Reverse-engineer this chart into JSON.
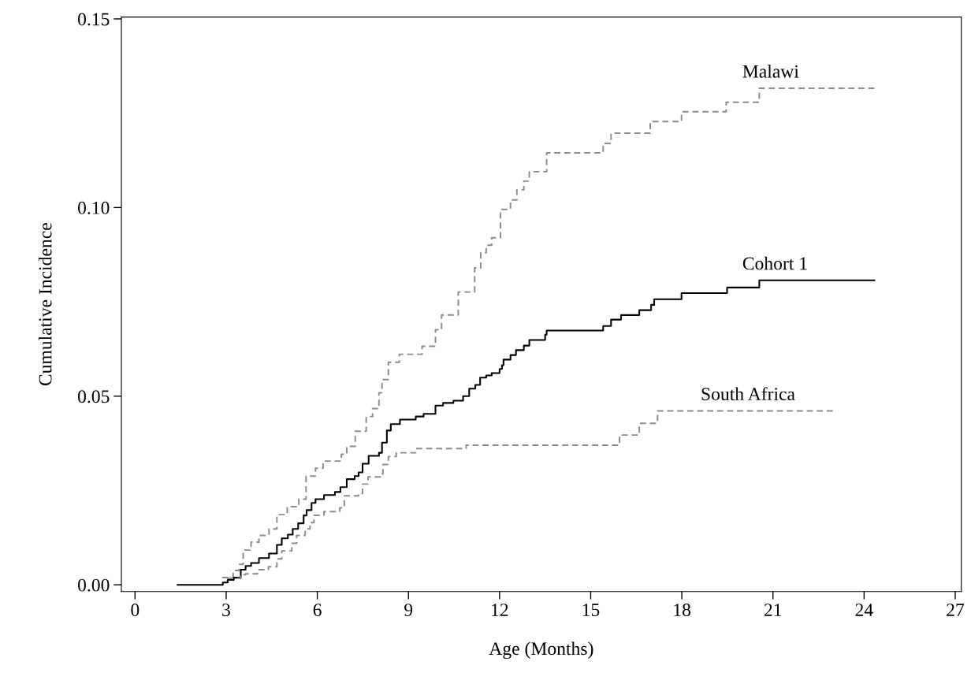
{
  "chart_data": {
    "type": "step",
    "xlabel": "Age (Months)",
    "ylabel": "Cumulative Incidence",
    "xlim": [
      -0.45,
      27.2
    ],
    "ylim": [
      -0.0018,
      0.1505
    ],
    "xticks": [
      0,
      3,
      6,
      9,
      12,
      15,
      18,
      21,
      24,
      27
    ],
    "yticks": [
      {
        "value": 0,
        "label": "0.00"
      },
      {
        "value": 0.05,
        "label": "0.05"
      },
      {
        "value": 0.1,
        "label": "0.10"
      },
      {
        "value": 0.15,
        "label": "0.15"
      }
    ],
    "grid": false,
    "legend": false,
    "marker": "none",
    "series": [
      {
        "name": "Malawi",
        "color": "#8c8c8c",
        "line_style": "dashed",
        "x": [
          2.87,
          3.23,
          3.43,
          3.56,
          3.82,
          4.08,
          4.41,
          4.67,
          5.01,
          5.39,
          5.63,
          5.94,
          6.19,
          6.79,
          6.97,
          7.25,
          7.61,
          7.82,
          8.03,
          8.13,
          8.34,
          8.7,
          9.45,
          9.89,
          10.09,
          10.64,
          11.18,
          11.38,
          11.56,
          11.74,
          12.03,
          12.36,
          12.57,
          12.8,
          12.98,
          13.55,
          15.41,
          15.67,
          16.96,
          17.99,
          19.46,
          20.55,
          24.34
        ],
        "values": [
          0.0019,
          0.0038,
          0.0054,
          0.0092,
          0.0113,
          0.0131,
          0.0148,
          0.0186,
          0.0207,
          0.0227,
          0.0288,
          0.0309,
          0.0328,
          0.0346,
          0.0367,
          0.0407,
          0.0446,
          0.0467,
          0.0509,
          0.0544,
          0.059,
          0.0611,
          0.0632,
          0.0676,
          0.0715,
          0.0776,
          0.084,
          0.088,
          0.09,
          0.092,
          0.0995,
          0.102,
          0.1047,
          0.107,
          0.1095,
          0.1145,
          0.117,
          0.1197,
          0.1228,
          0.1254,
          0.1279,
          0.1316,
          0.1316
        ]
      },
      {
        "name": "Cohort 1",
        "color": "#000000",
        "line_style": "solid",
        "x": [
          1.4,
          2.89,
          3.05,
          3.25,
          3.48,
          3.64,
          3.82,
          4.08,
          4.41,
          4.67,
          4.83,
          5.03,
          5.19,
          5.37,
          5.55,
          5.65,
          5.81,
          5.94,
          6.22,
          6.58,
          6.76,
          6.97,
          7.23,
          7.36,
          7.49,
          7.69,
          8.03,
          8.13,
          8.29,
          8.42,
          8.72,
          9.24,
          9.5,
          9.89,
          10.14,
          10.48,
          10.8,
          11.0,
          11.2,
          11.36,
          11.56,
          11.74,
          12.0,
          12.08,
          12.13,
          12.36,
          12.54,
          12.8,
          12.98,
          13.5,
          13.55,
          15.41,
          15.67,
          16.0,
          16.6,
          16.99,
          17.09,
          17.99,
          19.49,
          20.55,
          24.34
        ],
        "values": [
          0,
          0.0006,
          0.0013,
          0.0019,
          0.004,
          0.005,
          0.0058,
          0.0071,
          0.0083,
          0.0106,
          0.0123,
          0.0133,
          0.0148,
          0.0163,
          0.0184,
          0.0198,
          0.0217,
          0.0227,
          0.0238,
          0.0246,
          0.0259,
          0.028,
          0.0288,
          0.0298,
          0.0321,
          0.0342,
          0.035,
          0.0377,
          0.0409,
          0.0426,
          0.0438,
          0.0446,
          0.0453,
          0.0475,
          0.0482,
          0.0488,
          0.05,
          0.052,
          0.053,
          0.0549,
          0.0555,
          0.0561,
          0.0572,
          0.0582,
          0.0597,
          0.0609,
          0.0622,
          0.0634,
          0.0649,
          0.0663,
          0.0674,
          0.0686,
          0.0703,
          0.0715,
          0.0728,
          0.0742,
          0.0757,
          0.0773,
          0.0788,
          0.0807,
          0.0807
        ]
      },
      {
        "name": "South Africa",
        "color": "#8c8c8c",
        "line_style": "dashed",
        "x": [
          2.92,
          3.48,
          3.64,
          4.03,
          4.39,
          4.67,
          4.83,
          5.16,
          5.32,
          5.6,
          5.76,
          5.89,
          6.22,
          6.74,
          6.89,
          7.36,
          7.49,
          7.67,
          8.08,
          8.16,
          8.34,
          8.6,
          9.24,
          10.9,
          15.95,
          16.6,
          17.2,
          22.97
        ],
        "values": [
          0.0017,
          0.0027,
          0.0029,
          0.004,
          0.0048,
          0.0069,
          0.009,
          0.011,
          0.0131,
          0.0148,
          0.0165,
          0.0184,
          0.0194,
          0.0204,
          0.0236,
          0.0242,
          0.0267,
          0.0286,
          0.0294,
          0.0319,
          0.034,
          0.035,
          0.0361,
          0.037,
          0.0397,
          0.0428,
          0.0461,
          0.0461
        ]
      }
    ]
  }
}
